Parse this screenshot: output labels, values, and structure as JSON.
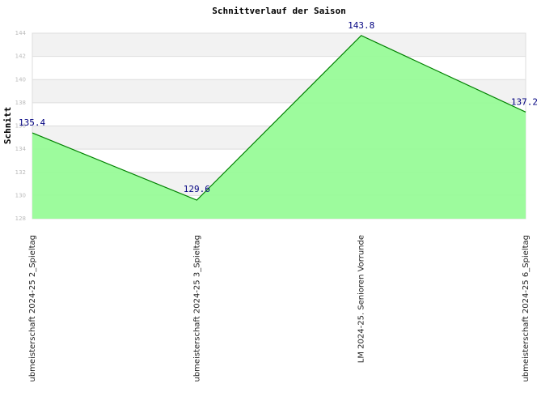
{
  "chart_data": {
    "type": "area",
    "title": "Schnittverlauf der Saison",
    "y_label": "Schnitt",
    "categories": [
      "ubmeisterschaft 2024-25  2_Spieltag",
      "ubmeisterschaft 2024-25  3_Spieltag",
      "LM 2024-25. Senioren Vorrunde",
      "ubmeisterschaft 2024-25  6_Spieltag"
    ],
    "values": [
      135.4,
      129.6,
      143.8,
      137.2
    ],
    "color": "#98fb98",
    "line_color": "#008000",
    "label_color": "#000080",
    "ylim": [
      128,
      144
    ],
    "yticks": [
      128,
      130,
      132,
      134,
      136,
      138,
      140,
      142,
      144
    ],
    "grid": true
  }
}
